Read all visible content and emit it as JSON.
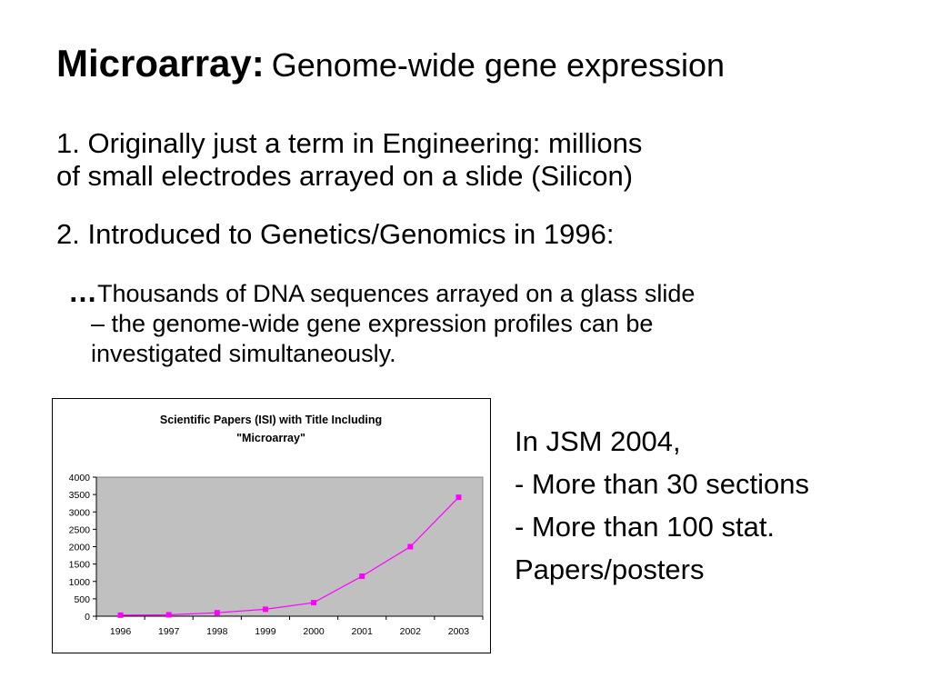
{
  "slide": {
    "title_bold": "Microarray:",
    "title_rest": "Genome-wide gene expression",
    "point1": [
      "1. Originally just a term in Engineering: millions",
      "of small electrodes arrayed on a slide (Silicon)"
    ],
    "point2": "2. Introduced to Genetics/Genomics in 1996:",
    "point3_prefix": "…",
    "point3": [
      "Thousands of DNA sequences arrayed on a glass slide",
      "– the genome-wide gene expression profiles can be",
      "investigated simultaneously."
    ],
    "side": [
      "In JSM 2004,",
      "- More than 30 sections",
      "- More than 100 stat.",
      "Papers/posters"
    ]
  },
  "chart_data": {
    "type": "line",
    "title": "Scientific Papers (ISI) with Title Including",
    "title_line2": "\"Microarray\"",
    "categories": [
      "1996",
      "1997",
      "1998",
      "1999",
      "2000",
      "2001",
      "2002",
      "2003"
    ],
    "values": [
      30,
      40,
      100,
      200,
      390,
      1150,
      2000,
      3420
    ],
    "ylim": [
      0,
      4000
    ],
    "yticks": [
      0,
      500,
      1000,
      1500,
      2000,
      2500,
      3000,
      3500,
      4000
    ],
    "grid": false,
    "plot_background": "#c0c0c0",
    "series_color": "#ff00ff"
  }
}
